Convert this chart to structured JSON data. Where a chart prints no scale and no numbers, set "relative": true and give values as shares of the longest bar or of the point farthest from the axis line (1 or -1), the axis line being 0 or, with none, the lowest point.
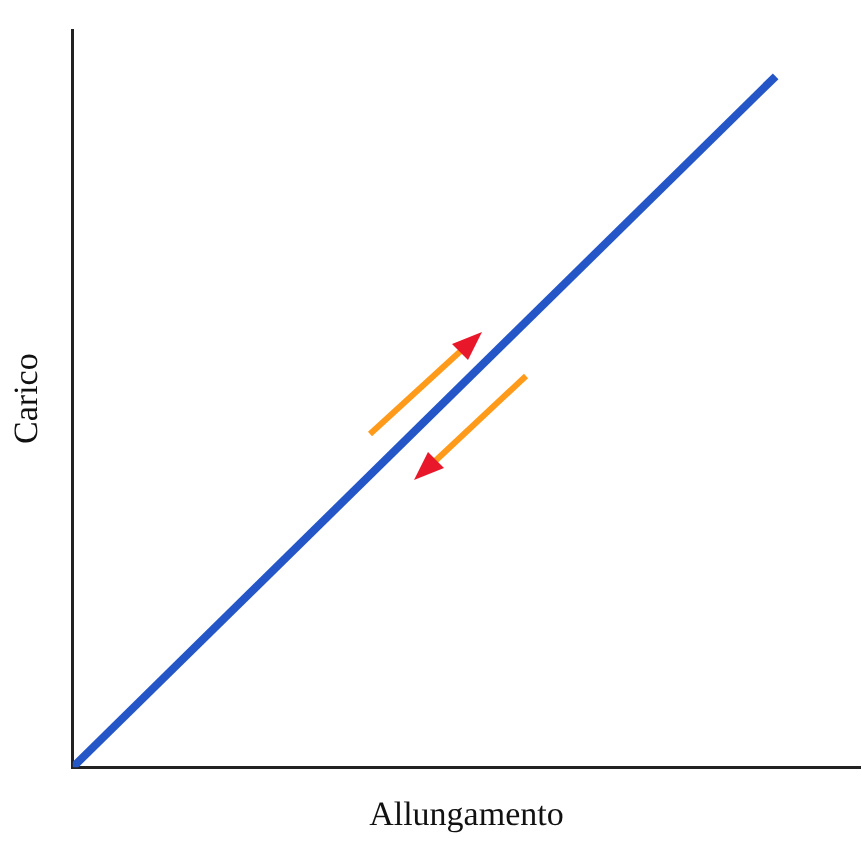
{
  "chart_data": {
    "type": "line",
    "xlabel": "Allungamento",
    "ylabel": "Carico",
    "relative": true,
    "categories": [
      null,
      null
    ],
    "series": [
      {
        "color": "#2456c8",
        "values": [
          0,
          1
        ]
      }
    ],
    "grid": false,
    "legend": false,
    "marker": "none",
    "line_style": "solid",
    "tick_labels": false
  }
}
